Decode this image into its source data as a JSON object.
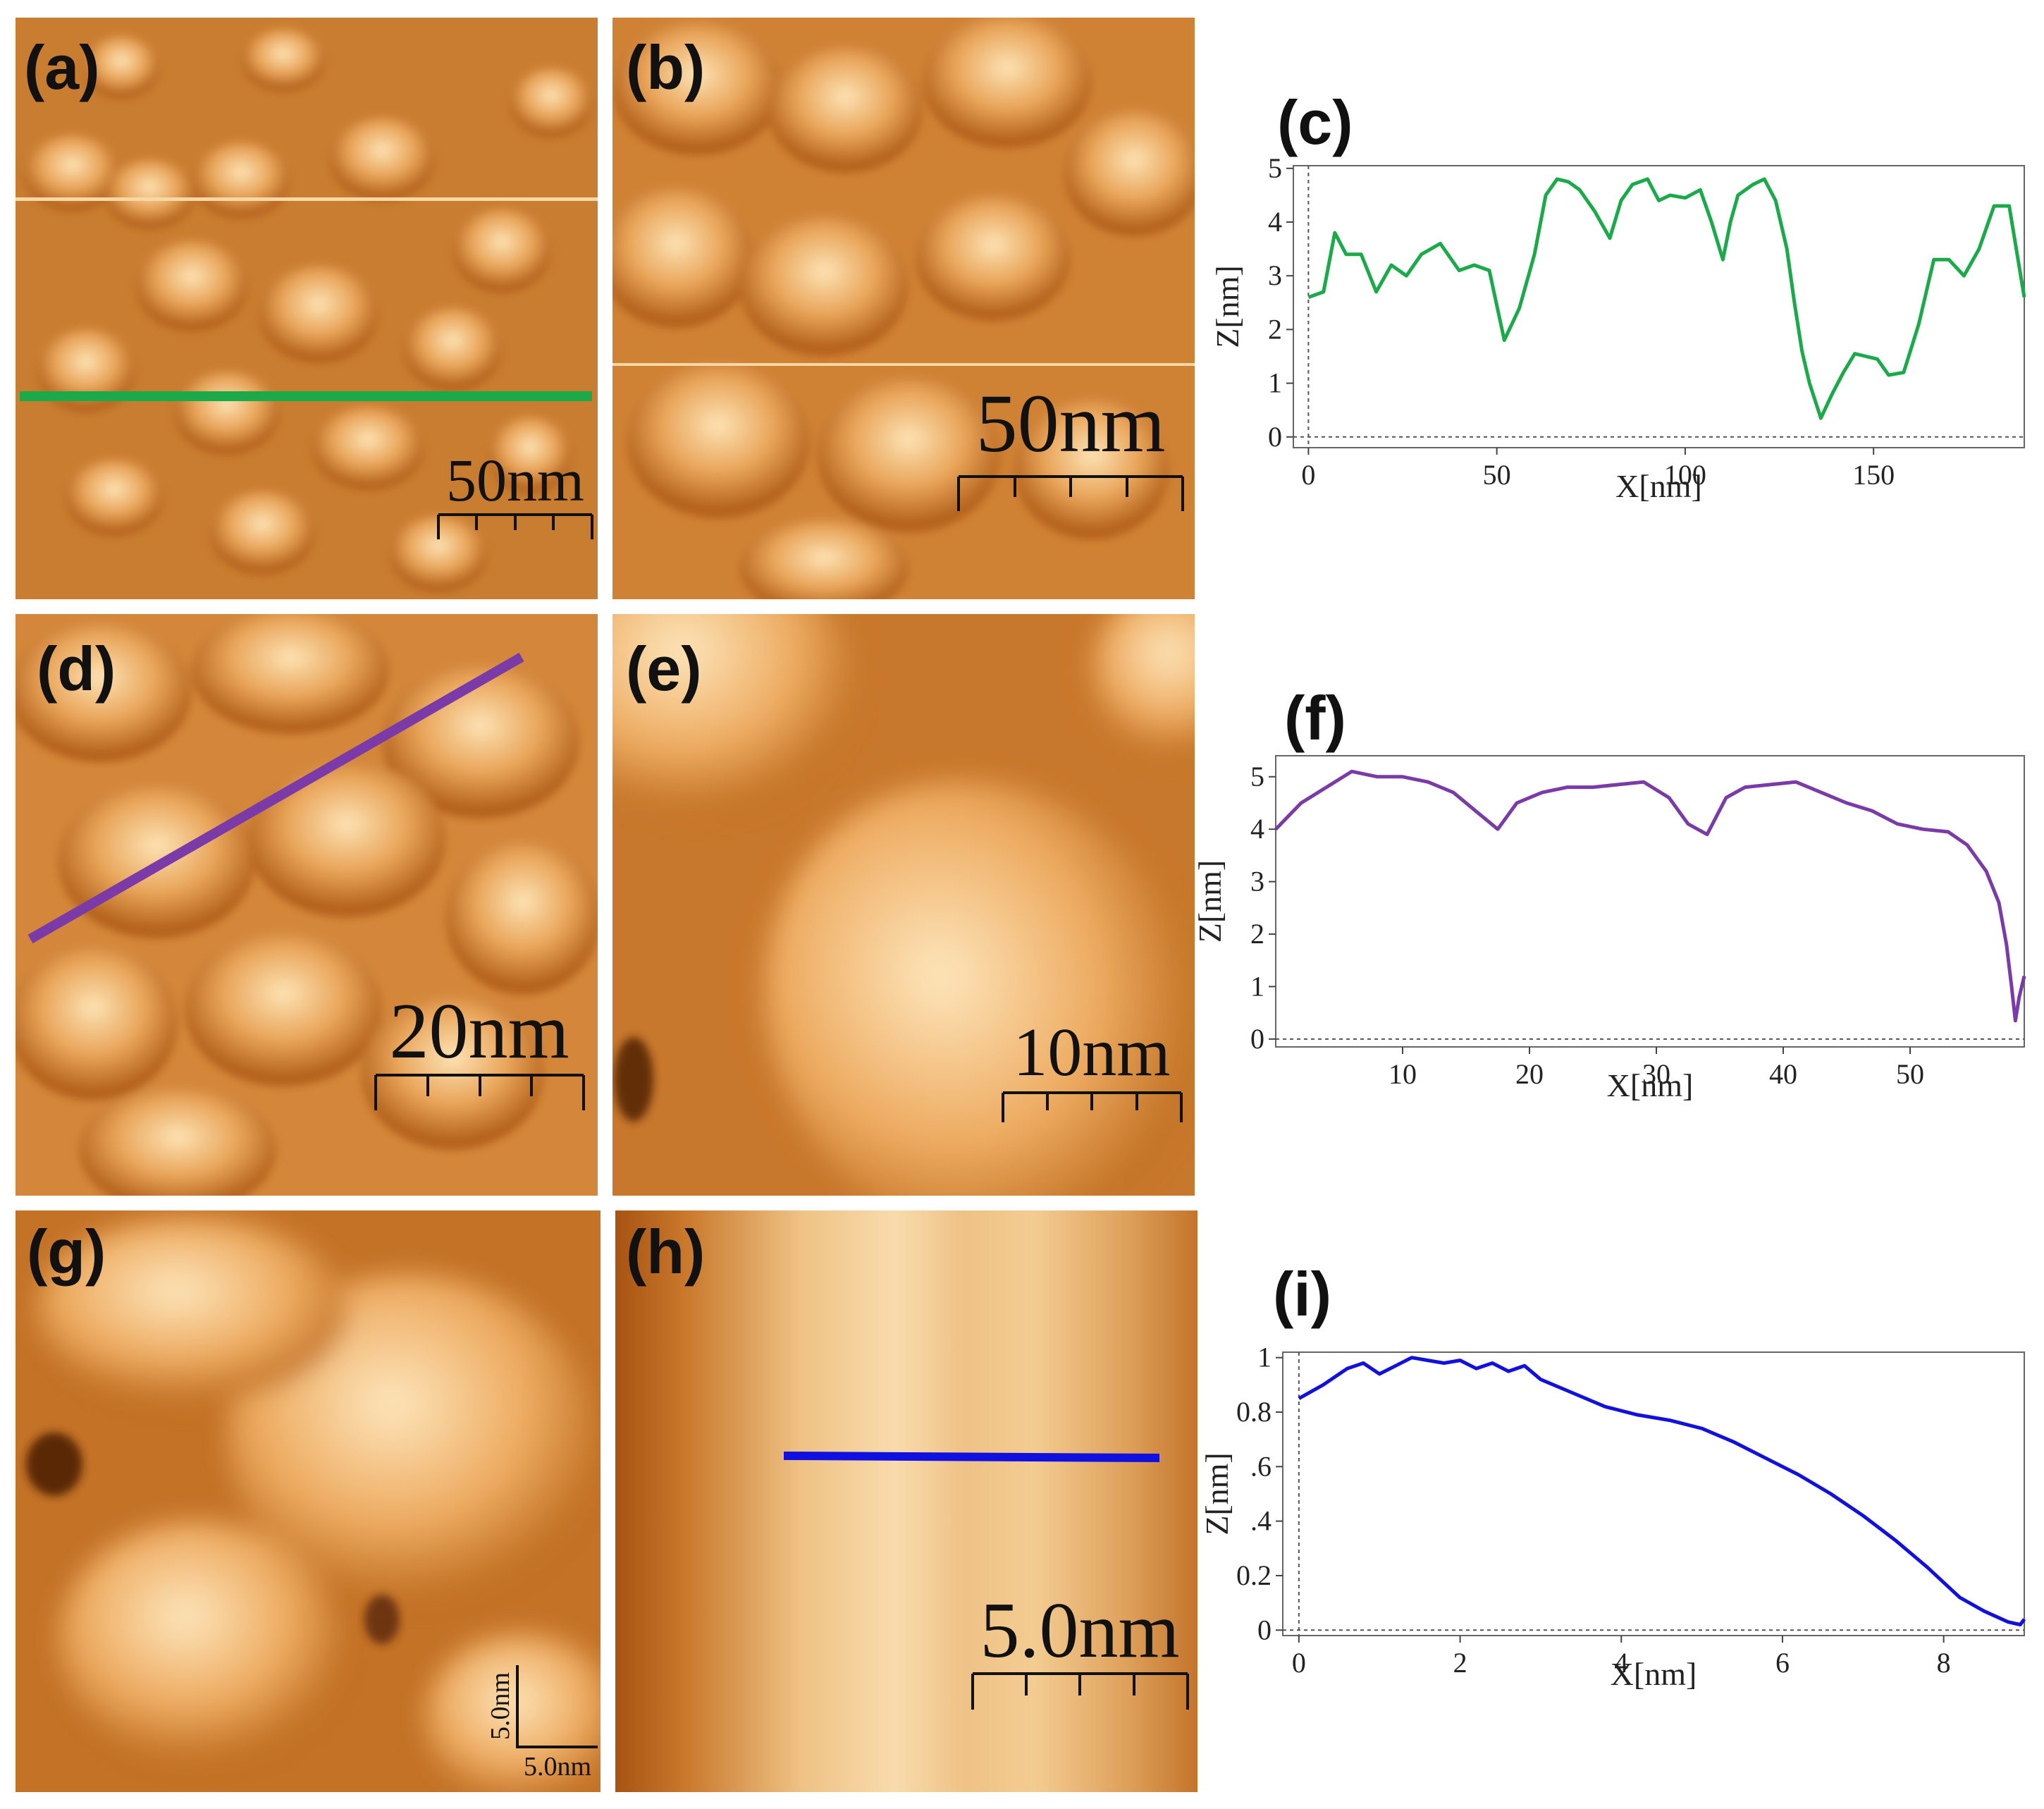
{
  "panels": [
    {
      "label": "(a)",
      "scale_bar": "50nm"
    },
    {
      "label": "(b)",
      "scale_bar": "50nm"
    },
    {
      "label": "(d)",
      "scale_bar": "20nm"
    },
    {
      "label": "(e)",
      "scale_bar": "10nm"
    },
    {
      "label": "(g)",
      "scale_bar_x": "5.0nm",
      "scale_bar_y": "5.0nm"
    },
    {
      "label": "(h)",
      "scale_bar": "5.0nm"
    }
  ],
  "colors": {
    "c": "#1aaa4a",
    "f": "#7a3aa8",
    "i": "#1010e0"
  },
  "chart_data": [
    {
      "id": "c",
      "label": "(c)",
      "type": "line",
      "xlabel": "X[nm]",
      "ylabel": "Z[nm]",
      "xlim": [
        -4,
        190
      ],
      "ylim": [
        -0.2,
        5.05
      ],
      "xticks": [
        0,
        50,
        100,
        150
      ],
      "yticks": [
        0,
        1,
        2,
        3,
        4,
        5
      ],
      "x": [
        0,
        4,
        7,
        10,
        14,
        18,
        22,
        26,
        30,
        35,
        40,
        44,
        48,
        52,
        56,
        60,
        63,
        66,
        69,
        72,
        76,
        80,
        83,
        86,
        90,
        93,
        96,
        100,
        104,
        107,
        110,
        112,
        114,
        118,
        121,
        124,
        127,
        129,
        131,
        133,
        136,
        139,
        142,
        145,
        148,
        151,
        154,
        158,
        162,
        166,
        170,
        174,
        178,
        182,
        186,
        190
      ],
      "y": [
        2.6,
        2.7,
        3.8,
        3.4,
        3.4,
        2.7,
        3.2,
        3.0,
        3.4,
        3.6,
        3.1,
        3.2,
        3.1,
        1.8,
        2.4,
        3.4,
        4.5,
        4.8,
        4.75,
        4.6,
        4.2,
        3.7,
        4.4,
        4.7,
        4.8,
        4.4,
        4.5,
        4.45,
        4.6,
        4.0,
        3.3,
        4.0,
        4.5,
        4.7,
        4.8,
        4.4,
        3.5,
        2.5,
        1.6,
        1.0,
        0.35,
        0.8,
        1.2,
        1.55,
        1.5,
        1.45,
        1.15,
        1.2,
        2.1,
        3.3,
        3.3,
        3.0,
        3.5,
        4.3,
        4.3,
        2.6
      ]
    },
    {
      "id": "f",
      "label": "(f)",
      "type": "line",
      "xlabel": "X[nm]",
      "ylabel": "Z[nm]",
      "xlim": [
        0,
        59
      ],
      "ylim": [
        -0.15,
        5.4
      ],
      "xticks": [
        10,
        20,
        30,
        40,
        50
      ],
      "yticks": [
        0,
        1,
        2,
        3,
        4,
        5
      ],
      "x": [
        0,
        2,
        4,
        6,
        8,
        10,
        12,
        14,
        16,
        17.5,
        19,
        21,
        23,
        25,
        27,
        29,
        31,
        32.5,
        34,
        35.5,
        37,
        39,
        41,
        43,
        45,
        47,
        49,
        51,
        53,
        54.5,
        56,
        57,
        57.6,
        58,
        58.3,
        58.6,
        59
      ],
      "y": [
        4.0,
        4.5,
        4.8,
        5.1,
        5.0,
        5.0,
        4.9,
        4.7,
        4.3,
        4.0,
        4.5,
        4.7,
        4.8,
        4.8,
        4.85,
        4.9,
        4.6,
        4.1,
        3.9,
        4.6,
        4.8,
        4.85,
        4.9,
        4.7,
        4.5,
        4.35,
        4.1,
        4.0,
        3.95,
        3.7,
        3.2,
        2.6,
        1.8,
        1.0,
        0.35,
        0.8,
        1.2
      ]
    },
    {
      "id": "i",
      "label": "(i)",
      "type": "line",
      "xlabel": "X[nm]",
      "ylabel": "Z[nm]",
      "xlim": [
        -0.2,
        9.0
      ],
      "ylim": [
        -0.02,
        1.02
      ],
      "xticks": [
        0,
        2,
        4,
        6,
        8
      ],
      "yticks": [
        0,
        0.2,
        0.4,
        0.6,
        0.8,
        1
      ],
      "ytick_labels": [
        "0",
        "0.2",
        ".4",
        ".6",
        "0.8",
        "1"
      ],
      "x": [
        0,
        0.3,
        0.6,
        0.8,
        1.0,
        1.2,
        1.4,
        1.6,
        1.8,
        2.0,
        2.2,
        2.4,
        2.6,
        2.8,
        3.0,
        3.4,
        3.8,
        4.2,
        4.6,
        5.0,
        5.4,
        5.8,
        6.2,
        6.6,
        7.0,
        7.4,
        7.8,
        8.2,
        8.5,
        8.8,
        8.95,
        9.0
      ],
      "y": [
        0.85,
        0.9,
        0.96,
        0.98,
        0.94,
        0.97,
        1.0,
        0.99,
        0.98,
        0.99,
        0.96,
        0.98,
        0.95,
        0.97,
        0.92,
        0.87,
        0.82,
        0.79,
        0.77,
        0.74,
        0.69,
        0.63,
        0.57,
        0.5,
        0.42,
        0.33,
        0.23,
        0.12,
        0.07,
        0.03,
        0.02,
        0.04
      ]
    }
  ]
}
